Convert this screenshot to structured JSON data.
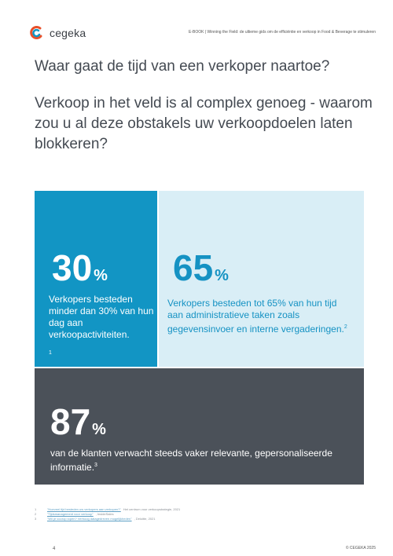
{
  "header": {
    "logo_text": "cegeka",
    "title": "E-BOOK |   Winning the Field: de ultieme gids om de efficiëntie en verkoop in Food & Beverage te stimuleren"
  },
  "heading": "Waar gaat de tijd van een verkoper naartoe?",
  "subheading": "Verkoop in het veld is al complex genoeg - waarom zou u al deze obstakels uw verkoopdoelen laten blokkeren?",
  "stats": [
    {
      "value": "30",
      "unit": "%",
      "text": "Verkopers besteden minder dan 30% van hun dag aan verkoopactiviteiten.",
      "footnote": "1"
    },
    {
      "value": "65",
      "unit": "%",
      "text": "Verkopers besteden tot 65% van hun tijd aan administratieve taken zoals gegevensinvoer en interne vergaderingen.",
      "footnote": "2"
    },
    {
      "value": "87",
      "unit": "%",
      "text": "van de klanten verwacht steeds vaker relevante, gepersonaliseerde informatie.",
      "footnote": "3"
    }
  ],
  "footnotes": [
    {
      "num": "1",
      "link": "\"Hoeveel tijd besteden uw verkopers aan verkopen?\"",
      "rest": " Het centrum voor verkoopstrategie, 2021"
    },
    {
      "num": "2",
      "link": "\"Tijdsmanagement voor verkoop\"",
      "rest": ", InsideSales"
    },
    {
      "num": "3",
      "link": "\"Wil je voorop lopen? Verhoog datagedreven mogelijkheden\"",
      "rest": ", Deloitte, 2021"
    }
  ],
  "page_number": "4",
  "copyright": "© CEGEKA 2025",
  "colors": {
    "primary_blue": "#1295c4",
    "light_blue": "#d9eef6",
    "dark_gray": "#4b5159",
    "logo_orange": "#e8502a"
  }
}
